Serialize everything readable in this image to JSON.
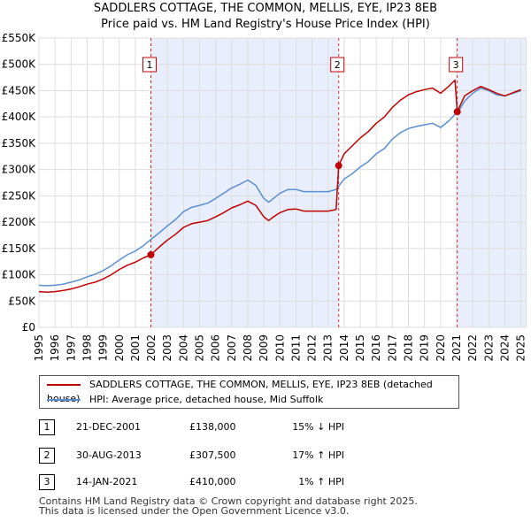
{
  "chart_data": {
    "type": "line",
    "title": "SADDLERS COTTAGE, THE COMMON, MELLIS, EYE, IP23 8EB",
    "subtitle": "Price paid vs. HM Land Registry's House Price Index (HPI)",
    "xlim": [
      1995,
      2025.3
    ],
    "ylim": [
      0,
      550000
    ],
    "x_ticks": [
      "1995",
      "1996",
      "1997",
      "1998",
      "1999",
      "2000",
      "2001",
      "2002",
      "2003",
      "2004",
      "2005",
      "2006",
      "2007",
      "2008",
      "2009",
      "2010",
      "2011",
      "2012",
      "2013",
      "2014",
      "2015",
      "2016",
      "2017",
      "2018",
      "2019",
      "2020",
      "2021",
      "2022",
      "2023",
      "2024",
      "2025"
    ],
    "y_ticks": [
      {
        "value": 0,
        "label": "£0"
      },
      {
        "value": 50000,
        "label": "£50K"
      },
      {
        "value": 100000,
        "label": "£100K"
      },
      {
        "value": 150000,
        "label": "£150K"
      },
      {
        "value": 200000,
        "label": "£200K"
      },
      {
        "value": 250000,
        "label": "£250K"
      },
      {
        "value": 300000,
        "label": "£300K"
      },
      {
        "value": 350000,
        "label": "£350K"
      },
      {
        "value": 400000,
        "label": "£400K"
      },
      {
        "value": 450000,
        "label": "£450K"
      },
      {
        "value": 500000,
        "label": "£500K"
      },
      {
        "value": 550000,
        "label": "£550K"
      }
    ],
    "series": [
      {
        "name": "HPI: Average price, detached house, Mid Suffolk",
        "color": "#5b8fd0",
        "x": [
          1995,
          1995.5,
          1996,
          1996.5,
          1997,
          1997.5,
          1998,
          1998.5,
          1999,
          1999.5,
          2000,
          2000.5,
          2001,
          2001.5,
          2002,
          2002.5,
          2003,
          2003.5,
          2004,
          2004.5,
          2005,
          2005.5,
          2006,
          2006.5,
          2007,
          2007.5,
          2008,
          2008.5,
          2009,
          2009.3,
          2009.6,
          2010,
          2010.5,
          2011,
          2011.5,
          2012,
          2012.5,
          2013,
          2013.5,
          2014,
          2014.5,
          2015,
          2015.5,
          2016,
          2016.5,
          2017,
          2017.5,
          2018,
          2018.5,
          2019,
          2019.5,
          2020,
          2020.5,
          2020.9,
          2021.1,
          2021.5,
          2022,
          2022.5,
          2023,
          2023.5,
          2024,
          2024.5,
          2025
        ],
        "values": [
          80000,
          79000,
          80000,
          82000,
          86000,
          90000,
          96000,
          101000,
          108000,
          117000,
          128000,
          138000,
          145000,
          155000,
          168000,
          180000,
          193000,
          205000,
          220000,
          228000,
          232000,
          236000,
          245000,
          255000,
          265000,
          272000,
          280000,
          270000,
          245000,
          238000,
          245000,
          255000,
          262000,
          262000,
          258000,
          258000,
          258000,
          258000,
          262000,
          282000,
          292000,
          305000,
          315000,
          330000,
          340000,
          358000,
          370000,
          378000,
          382000,
          385000,
          388000,
          380000,
          392000,
          405000,
          410000,
          430000,
          445000,
          455000,
          450000,
          442000,
          440000,
          445000,
          450000
        ]
      },
      {
        "name": "SADDLERS COTTAGE, THE COMMON, MELLIS, EYE, IP23 8EB (detached house)",
        "color": "#c00000",
        "x": [
          1995,
          1995.5,
          1996,
          1996.5,
          1997,
          1997.5,
          1998,
          1998.5,
          1999,
          1999.5,
          2000,
          2000.5,
          2001,
          2001.5,
          2001.97,
          2002.5,
          2003,
          2003.5,
          2004,
          2004.5,
          2005,
          2005.5,
          2006,
          2006.5,
          2007,
          2007.5,
          2008,
          2008.5,
          2009,
          2009.3,
          2009.6,
          2010,
          2010.5,
          2011,
          2011.5,
          2012,
          2012.5,
          2013,
          2013.5,
          2013.66,
          2014,
          2014.5,
          2015,
          2015.5,
          2016,
          2016.5,
          2017,
          2017.5,
          2018,
          2018.5,
          2019,
          2019.5,
          2020,
          2020.5,
          2020.9,
          2021.04,
          2021.5,
          2022,
          2022.5,
          2023,
          2023.5,
          2024,
          2024.5,
          2025
        ],
        "values": [
          68000,
          67000,
          68000,
          70000,
          73000,
          77000,
          82000,
          86000,
          92000,
          100000,
          110000,
          118000,
          124000,
          132000,
          138000,
          153000,
          166000,
          177000,
          190000,
          197000,
          200000,
          203000,
          210000,
          218000,
          227000,
          233000,
          240000,
          232000,
          210000,
          203000,
          210000,
          218000,
          224000,
          225000,
          221000,
          221000,
          221000,
          221000,
          224000,
          307500,
          330000,
          345000,
          360000,
          372000,
          388000,
          400000,
          418000,
          432000,
          442000,
          448000,
          452000,
          455000,
          445000,
          458000,
          470000,
          410000,
          440000,
          450000,
          458000,
          452000,
          445000,
          440000,
          446000,
          452000
        ]
      }
    ],
    "transactions": [
      {
        "id": "1",
        "date": "21-DEC-2001",
        "x": 2001.97,
        "price": 138000,
        "price_label": "£138,000",
        "hpi": "15% ↓ HPI"
      },
      {
        "id": "2",
        "date": "30-AUG-2013",
        "x": 2013.66,
        "price": 307500,
        "price_label": "£307,500",
        "hpi": "17% ↑ HPI"
      },
      {
        "id": "3",
        "date": "14-JAN-2021",
        "x": 2021.04,
        "price": 410000,
        "price_label": "£410,000",
        "hpi": "1% ↑ HPI"
      }
    ]
  },
  "legend": {
    "property_label": "SADDLERS COTTAGE, THE COMMON, MELLIS, EYE, IP23 8EB (detached house)",
    "hpi_label": "HPI: Average price, detached house, Mid Suffolk",
    "property_color": "#c00000",
    "hpi_color": "#5b8fd0"
  },
  "footer": {
    "line1": "Contains HM Land Registry data © Crown copyright and database right 2025.",
    "line2": "This data is licensed under the Open Government Licence v3.0."
  }
}
